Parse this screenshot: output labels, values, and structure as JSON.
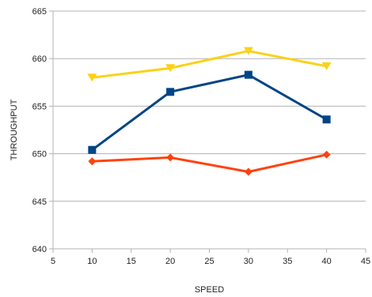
{
  "chart_data": {
    "type": "line",
    "xlabel": "SPEED",
    "ylabel": "THROUGHPUT",
    "xlim": [
      5,
      45
    ],
    "ylim": [
      640,
      665
    ],
    "xticks": [
      5,
      10,
      15,
      20,
      25,
      30,
      35,
      40,
      45
    ],
    "yticks": [
      640,
      645,
      650,
      655,
      660,
      665
    ],
    "grid": "horizontal",
    "legend": "none",
    "x": [
      10,
      20,
      30,
      40
    ],
    "series": [
      {
        "values": [
          658.0,
          659.0,
          660.8,
          659.2
        ],
        "color": "#fcd116",
        "marker": "triangle-down"
      },
      {
        "values": [
          650.4,
          656.5,
          658.3,
          653.6
        ],
        "color": "#004586",
        "marker": "square"
      },
      {
        "values": [
          649.2,
          649.6,
          648.1,
          649.9
        ],
        "color": "#ff420e",
        "marker": "diamond"
      }
    ]
  }
}
